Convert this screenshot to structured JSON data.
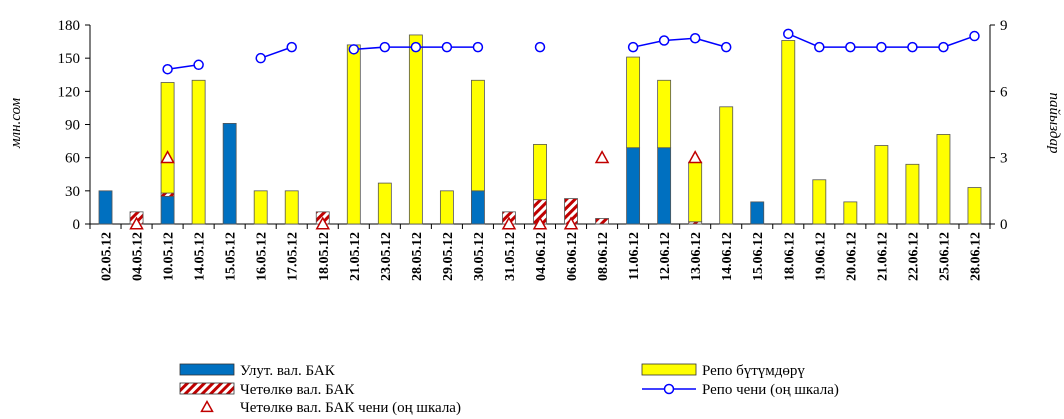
{
  "chart_data": {
    "type": "bar",
    "categories": [
      "02.05.12",
      "04.05.12",
      "10.05.12",
      "14.05.12",
      "15.05.12",
      "16.05.12",
      "17.05.12",
      "18.05.12",
      "21.05.12",
      "23.05.12",
      "28.05.12",
      "29.05.12",
      "30.05.12",
      "31.05.12",
      "04.06.12",
      "06.06.12",
      "08.06.12",
      "11.06.12",
      "12.06.12",
      "13.06.12",
      "14.06.12",
      "15.06.12",
      "18.06.12",
      "19.06.12",
      "20.06.12",
      "21.06.12",
      "22.06.12",
      "25.06.12",
      "28.06.12"
    ],
    "ylabel": "млн.сом",
    "y2label": "пайыздар",
    "ylim": [
      0,
      180
    ],
    "y2lim": [
      0,
      9
    ],
    "yticks": [
      "0",
      "30",
      "60",
      "90",
      "120",
      "150",
      "180"
    ],
    "y2ticks": [
      "0",
      "3",
      "6",
      "9"
    ],
    "bars_stacked": true,
    "series": [
      {
        "name": "Улут. вал. БАК",
        "kind": "bar",
        "color": "#0070C0",
        "values": [
          30,
          0,
          25,
          0,
          91,
          0,
          0,
          0,
          0,
          0,
          0,
          0,
          30,
          0,
          0,
          0,
          0,
          69,
          69,
          0,
          0,
          20,
          0,
          0,
          0,
          0,
          0,
          0,
          0
        ]
      },
      {
        "name": "Четөлкө вал. БАК",
        "kind": "bar",
        "color": "#C00000",
        "pattern": "hatch",
        "values": [
          0,
          11,
          3,
          0,
          0,
          0,
          0,
          11,
          0,
          0,
          0,
          0,
          0,
          11,
          22,
          23,
          5,
          0,
          0,
          2,
          0,
          0,
          0,
          0,
          0,
          0,
          0,
          0,
          0
        ]
      },
      {
        "name": "Репо бүтүмдөрү",
        "kind": "bar",
        "color": "#FFFF00",
        "values": [
          0,
          0,
          100,
          130,
          0,
          30,
          30,
          0,
          162,
          37,
          171,
          30,
          100,
          0,
          50,
          0,
          0,
          82,
          61,
          54,
          106,
          0,
          166,
          40,
          20,
          71,
          54,
          81,
          33
        ]
      },
      {
        "name": "Четөлкө вал. БАК чени (оң шкала)",
        "kind": "marker",
        "axis": "right",
        "color": "#C00000",
        "values": [
          null,
          0,
          3,
          null,
          null,
          null,
          null,
          0,
          null,
          null,
          null,
          null,
          null,
          0,
          0,
          0,
          3,
          null,
          null,
          3,
          null,
          null,
          null,
          null,
          null,
          null,
          null,
          null,
          null
        ]
      },
      {
        "name": "Репо чени (оң шкала)",
        "kind": "line",
        "axis": "right",
        "color": "#0000FF",
        "values": [
          null,
          null,
          7.0,
          7.2,
          null,
          7.5,
          8.0,
          null,
          7.9,
          8.0,
          8.0,
          8.0,
          8.0,
          null,
          8.0,
          null,
          null,
          8.0,
          8.3,
          8.4,
          8.0,
          null,
          8.6,
          8.0,
          8.0,
          8.0,
          8.0,
          8.0,
          8.5
        ]
      }
    ],
    "legend_position": "bottom",
    "grid": false
  }
}
